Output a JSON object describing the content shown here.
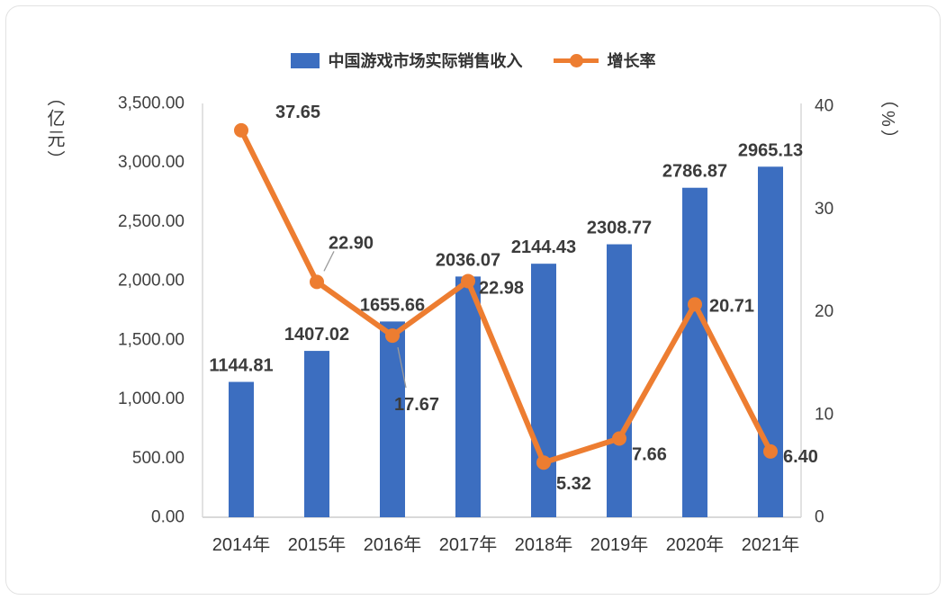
{
  "chart_data": {
    "type": "bar+line combo",
    "categories": [
      "2014年",
      "2015年",
      "2016年",
      "2017年",
      "2018年",
      "2019年",
      "2020年",
      "2021年"
    ],
    "series": [
      {
        "name": "中国游戏市场实际销售收入",
        "type": "bar",
        "axis": "left",
        "color": "#3c6ec0",
        "values": [
          1144.81,
          1407.02,
          1655.66,
          2036.07,
          2144.43,
          2308.77,
          2786.87,
          2965.13
        ]
      },
      {
        "name": "增长率",
        "type": "line",
        "axis": "right",
        "color": "#ed7d31",
        "values": [
          37.65,
          22.9,
          17.67,
          22.98,
          5.32,
          7.66,
          20.71,
          6.4
        ]
      }
    ],
    "left_axis": {
      "label": "（亿元）",
      "min": 0,
      "max": 3500,
      "ticks": [
        "3,500.00",
        "3,000.00",
        "2,500.00",
        "2,000.00",
        "1,500.00",
        "1,000.00",
        "500.00",
        "0.00"
      ]
    },
    "right_axis": {
      "label": "（%）",
      "min": 0,
      "max": 40,
      "ticks": [
        "40",
        "30",
        "20",
        "10",
        "0"
      ]
    },
    "grid": "off",
    "legend_position": "top"
  },
  "colors": {
    "bar": "#3c6ec0",
    "line": "#ed7d31",
    "axis_line": "#d9d9d9",
    "label_text": "#3b3b3b",
    "tick_text": "#404040"
  }
}
